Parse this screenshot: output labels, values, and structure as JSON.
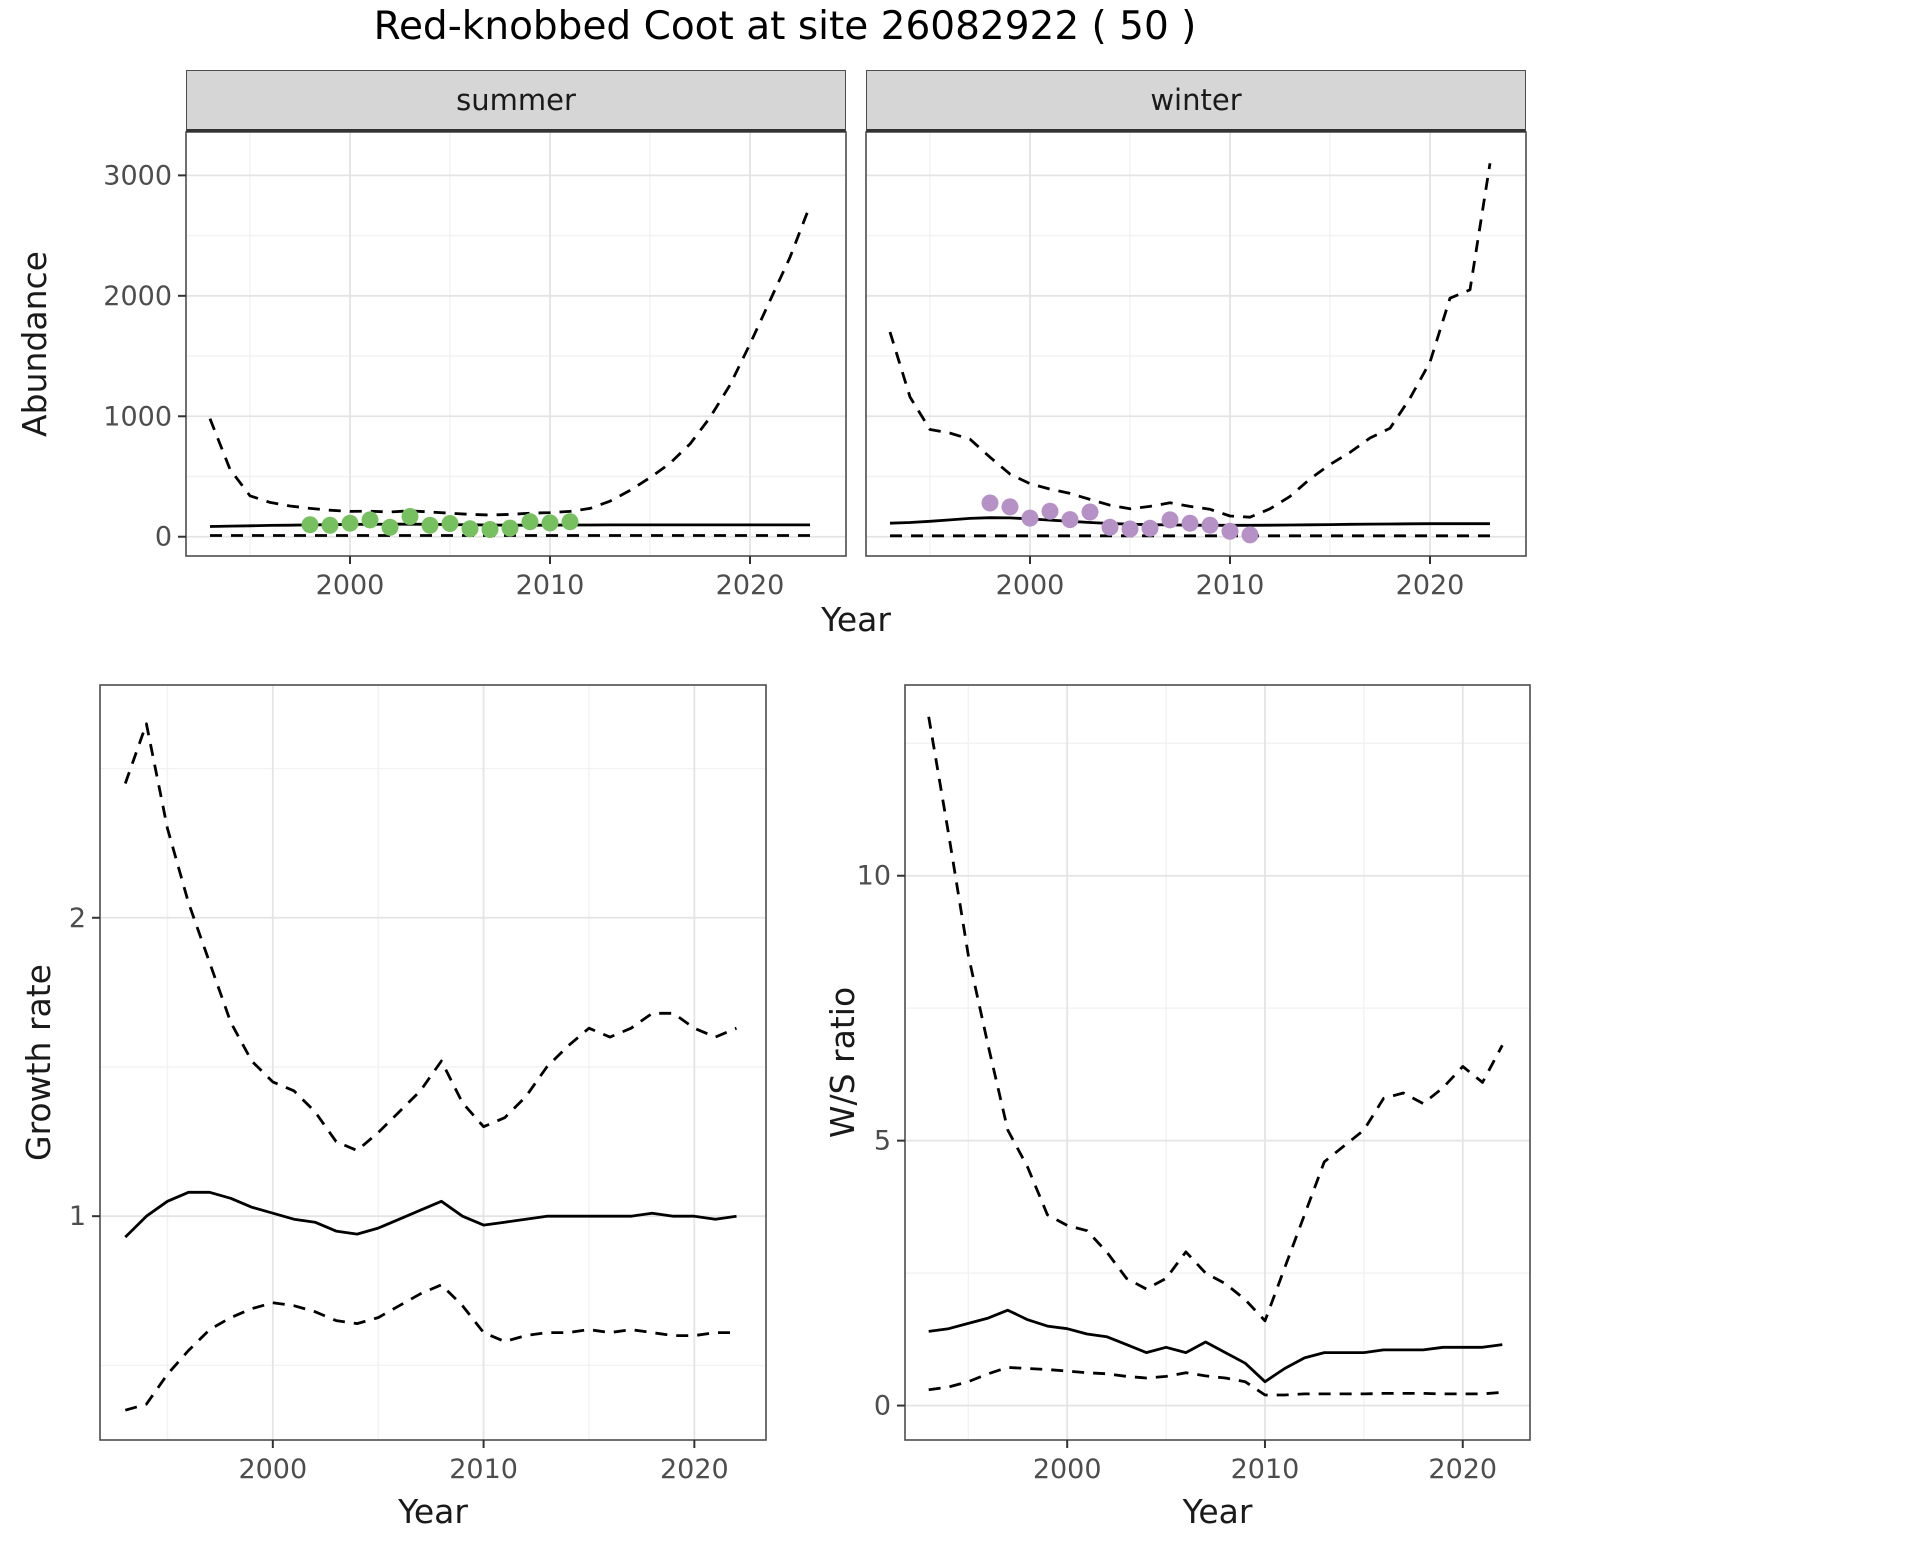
{
  "title": "Red-knobbed Coot at site 26082922 ( 50 )",
  "colors": {
    "summer_points": "#77c05f",
    "winter_points": "#b591c6",
    "line": "#000000",
    "grid_major": "#e4e4e4",
    "grid_minor": "#f2f2f2",
    "panel_border": "#4d4d4d",
    "strip_bg": "#d6d6d6",
    "tick_text": "#4d4d4d",
    "label_text": "#1a1a1a"
  },
  "chart_data": [
    {
      "id": "abundance_by_season",
      "type": "line",
      "xlabel": "Year",
      "ylabel": "Abundance",
      "xlim": [
        1991.8,
        2024.8
      ],
      "ylim": [
        -160,
        3360
      ],
      "xticks": [
        2000,
        2010,
        2020
      ],
      "xticks_minor": [
        1995,
        2005,
        2015
      ],
      "yticks": [
        0,
        1000,
        2000,
        3000
      ],
      "yticks_minor": [
        500,
        1500,
        2500
      ],
      "grid": "on",
      "legend": "none",
      "line_styles": {
        "fit": "solid",
        "ci": "dashed"
      },
      "years": [
        1993,
        1994,
        1995,
        1996,
        1997,
        1998,
        1999,
        2000,
        2001,
        2002,
        2003,
        2004,
        2005,
        2006,
        2007,
        2008,
        2009,
        2010,
        2011,
        2012,
        2013,
        2014,
        2015,
        2016,
        2017,
        2018,
        2019,
        2020,
        2021,
        2022,
        2023
      ],
      "facets": [
        {
          "label": "summer",
          "point_color": "#77c05f",
          "fit": [
            85,
            88,
            91,
            94,
            96,
            98,
            100,
            102,
            103,
            104,
            104,
            103,
            101,
            99,
            97,
            96,
            96,
            96,
            97,
            97,
            98,
            98,
            98,
            98,
            98,
            98,
            98,
            98,
            98,
            98,
            98
          ],
          "ci_upper": [
            980,
            560,
            340,
            285,
            255,
            235,
            220,
            210,
            212,
            205,
            215,
            205,
            195,
            185,
            180,
            185,
            195,
            200,
            210,
            235,
            295,
            385,
            490,
            610,
            770,
            990,
            1260,
            1600,
            1960,
            2320,
            2750
          ],
          "ci_lower": [
            10,
            10,
            10,
            10,
            10,
            10,
            10,
            10,
            10,
            10,
            10,
            10,
            10,
            10,
            10,
            10,
            10,
            10,
            10,
            10,
            10,
            10,
            10,
            10,
            10,
            10,
            10,
            10,
            10,
            10,
            10
          ],
          "observed_years": [
            1998,
            1999,
            2000,
            2001,
            2002,
            2003,
            2004,
            2005,
            2006,
            2007,
            2008,
            2009,
            2010,
            2011
          ],
          "observed": [
            100,
            95,
            112,
            140,
            78,
            168,
            95,
            110,
            66,
            60,
            72,
            125,
            115,
            125
          ]
        },
        {
          "label": "winter",
          "point_color": "#b591c6",
          "fit": [
            112,
            118,
            128,
            140,
            152,
            158,
            156,
            148,
            138,
            128,
            118,
            110,
            104,
            100,
            98,
            96,
            95,
            95,
            95,
            96,
            97,
            99,
            101,
            103,
            105,
            106,
            107,
            108,
            108,
            108,
            108
          ],
          "ci_upper": [
            1700,
            1160,
            890,
            860,
            810,
            660,
            520,
            440,
            395,
            360,
            310,
            262,
            232,
            252,
            282,
            252,
            228,
            172,
            162,
            232,
            335,
            480,
            600,
            700,
            820,
            900,
            1150,
            1450,
            1980,
            2050,
            3100
          ],
          "ci_lower": [
            8,
            8,
            8,
            8,
            8,
            8,
            8,
            8,
            8,
            8,
            8,
            8,
            8,
            8,
            8,
            8,
            8,
            8,
            8,
            8,
            8,
            8,
            8,
            8,
            8,
            8,
            8,
            8,
            8,
            8,
            8
          ],
          "observed_years": [
            1998,
            1999,
            2000,
            2001,
            2002,
            2003,
            2004,
            2005,
            2006,
            2007,
            2008,
            2009,
            2010,
            2011
          ],
          "observed": [
            280,
            248,
            155,
            212,
            142,
            205,
            78,
            64,
            70,
            140,
            112,
            96,
            45,
            15
          ]
        }
      ]
    },
    {
      "id": "growth_rate",
      "type": "line",
      "xlabel": "Year",
      "ylabel": "Growth rate",
      "xlim": [
        1991.8,
        2023.4
      ],
      "ylim": [
        0.25,
        2.78
      ],
      "xticks": [
        2000,
        2010,
        2020
      ],
      "xticks_minor": [
        1995,
        2005,
        2015
      ],
      "yticks": [
        1,
        2
      ],
      "yticks_minor": [
        0.5,
        1.5,
        2.5
      ],
      "grid": "on",
      "legend": "none",
      "line_styles": {
        "fit": "solid",
        "ci": "dashed"
      },
      "years": [
        1993,
        1994,
        1995,
        1996,
        1997,
        1998,
        1999,
        2000,
        2001,
        2002,
        2003,
        2004,
        2005,
        2006,
        2007,
        2008,
        2009,
        2010,
        2011,
        2012,
        2013,
        2014,
        2015,
        2016,
        2017,
        2018,
        2019,
        2020,
        2021,
        2022
      ],
      "fit": [
        0.93,
        1.0,
        1.05,
        1.08,
        1.08,
        1.06,
        1.03,
        1.01,
        0.99,
        0.98,
        0.95,
        0.94,
        0.96,
        0.99,
        1.02,
        1.05,
        1.0,
        0.97,
        0.98,
        0.99,
        1.0,
        1.0,
        1.0,
        1.0,
        1.0,
        1.01,
        1.0,
        1.0,
        0.99,
        1.0
      ],
      "ci_upper": [
        2.45,
        2.65,
        2.3,
        2.05,
        1.85,
        1.65,
        1.52,
        1.45,
        1.42,
        1.35,
        1.25,
        1.22,
        1.28,
        1.35,
        1.42,
        1.52,
        1.38,
        1.3,
        1.33,
        1.4,
        1.5,
        1.57,
        1.63,
        1.6,
        1.63,
        1.68,
        1.68,
        1.63,
        1.6,
        1.63
      ],
      "ci_lower": [
        0.35,
        0.37,
        0.47,
        0.55,
        0.62,
        0.66,
        0.69,
        0.71,
        0.7,
        0.68,
        0.65,
        0.64,
        0.66,
        0.7,
        0.74,
        0.77,
        0.7,
        0.61,
        0.58,
        0.6,
        0.61,
        0.61,
        0.62,
        0.61,
        0.62,
        0.61,
        0.6,
        0.6,
        0.61,
        0.61
      ]
    },
    {
      "id": "winter_summer_ratio",
      "type": "line",
      "xlabel": "Year",
      "ylabel": "W/S ratio",
      "xlim": [
        1991.8,
        2023.4
      ],
      "ylim": [
        -0.65,
        13.6
      ],
      "xticks": [
        2000,
        2010,
        2020
      ],
      "xticks_minor": [
        1995,
        2005,
        2015
      ],
      "yticks": [
        0,
        5,
        10
      ],
      "yticks_minor": [
        2.5,
        7.5,
        12.5
      ],
      "grid": "on",
      "legend": "none",
      "line_styles": {
        "fit": "solid",
        "ci": "dashed"
      },
      "years": [
        1993,
        1994,
        1995,
        1996,
        1997,
        1998,
        1999,
        2000,
        2001,
        2002,
        2003,
        2004,
        2005,
        2006,
        2007,
        2008,
        2009,
        2010,
        2011,
        2012,
        2013,
        2014,
        2015,
        2016,
        2017,
        2018,
        2019,
        2020,
        2021,
        2022
      ],
      "fit": [
        1.4,
        1.45,
        1.55,
        1.65,
        1.8,
        1.62,
        1.5,
        1.45,
        1.35,
        1.3,
        1.15,
        1.0,
        1.1,
        1.0,
        1.2,
        1.0,
        0.8,
        0.45,
        0.7,
        0.9,
        1.0,
        1.0,
        1.0,
        1.05,
        1.05,
        1.05,
        1.1,
        1.1,
        1.1,
        1.15
      ],
      "ci_upper": [
        13.0,
        10.8,
        8.5,
        6.8,
        5.2,
        4.5,
        3.6,
        3.4,
        3.3,
        2.9,
        2.4,
        2.2,
        2.4,
        2.9,
        2.5,
        2.3,
        2.0,
        1.6,
        2.6,
        3.6,
        4.6,
        4.9,
        5.2,
        5.8,
        5.9,
        5.7,
        6.0,
        6.4,
        6.1,
        6.8
      ],
      "ci_lower": [
        0.3,
        0.35,
        0.45,
        0.6,
        0.72,
        0.7,
        0.68,
        0.65,
        0.62,
        0.6,
        0.55,
        0.52,
        0.55,
        0.62,
        0.56,
        0.52,
        0.45,
        0.2,
        0.2,
        0.22,
        0.22,
        0.22,
        0.22,
        0.23,
        0.23,
        0.23,
        0.22,
        0.22,
        0.22,
        0.25
      ]
    }
  ]
}
